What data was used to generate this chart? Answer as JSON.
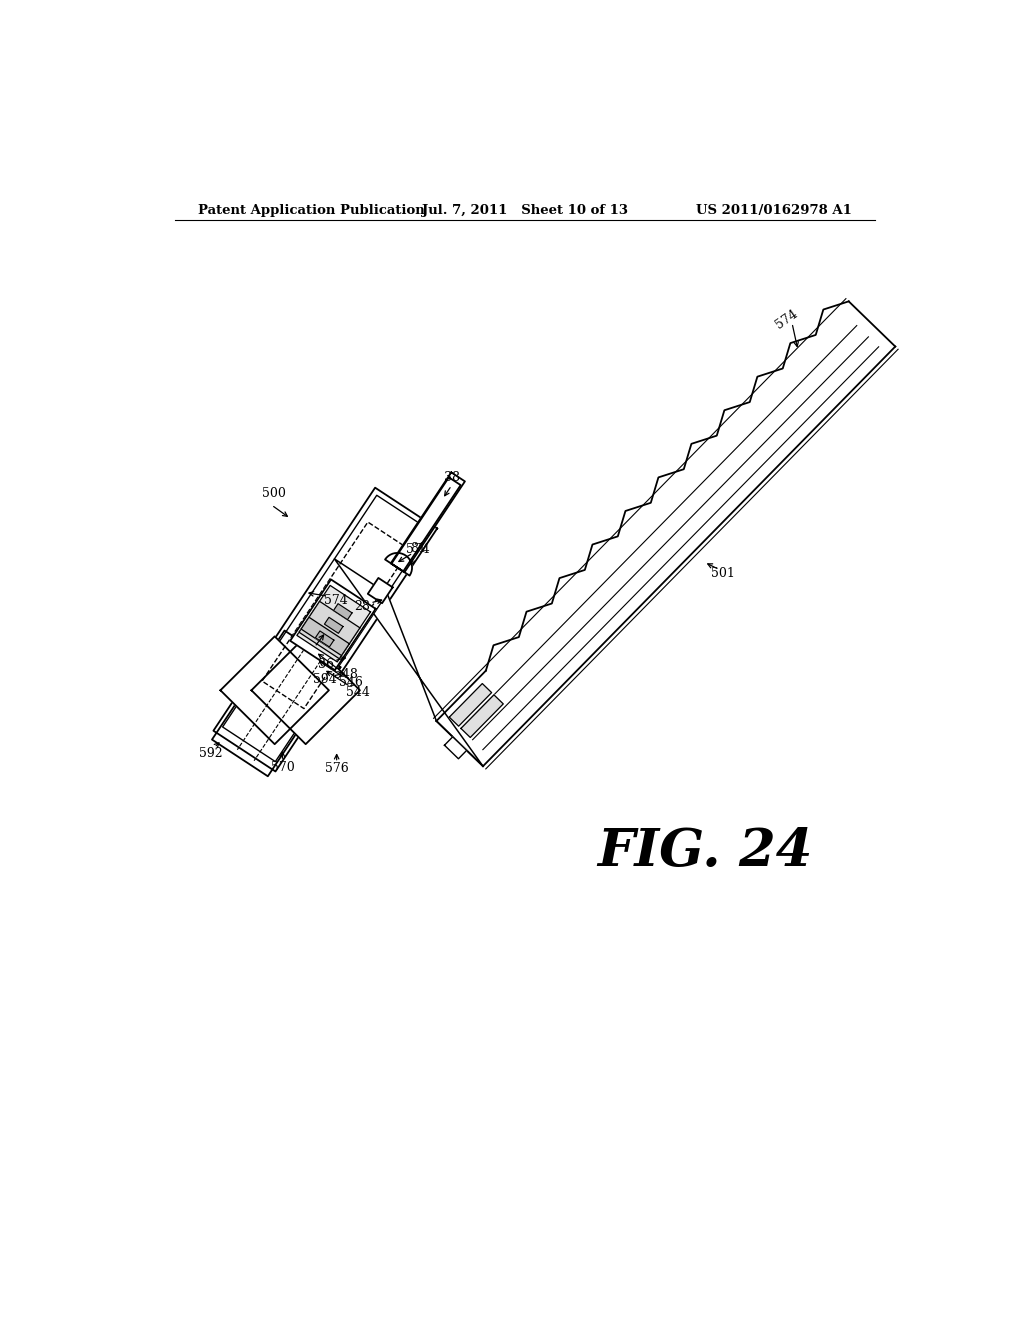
{
  "header_left": "Patent Application Publication",
  "header_mid": "Jul. 7, 2011   Sheet 10 of 13",
  "header_right": "US 2011/0162978 A1",
  "fig_label": "FIG. 24",
  "bg": "#ffffff"
}
